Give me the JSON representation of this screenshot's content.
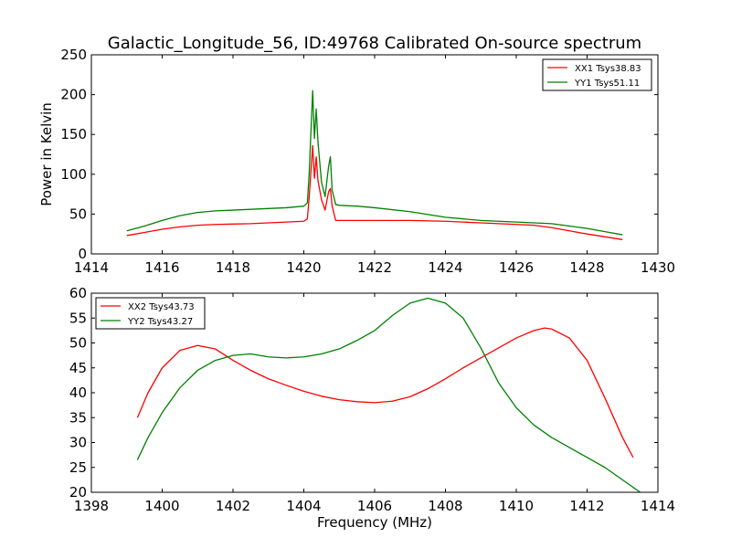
{
  "figure": {
    "title": "Galactic_Longitude_56, ID:49768 Calibrated On-source spectrum"
  },
  "chart_data": [
    {
      "type": "line",
      "title": "Galactic_Longitude_56, ID:49768 Calibrated On-source spectrum",
      "xlabel": "",
      "ylabel": "Power in Kelvin",
      "xlim": [
        1414,
        1430
      ],
      "ylim": [
        0,
        250
      ],
      "xticks": [
        1414,
        1416,
        1418,
        1420,
        1422,
        1424,
        1426,
        1428,
        1430
      ],
      "yticks": [
        0,
        50,
        100,
        150,
        200,
        250
      ],
      "grid": false,
      "legend": "top-right",
      "series": [
        {
          "name": "XX1 Tsys38.83",
          "color": "#ff0000",
          "x": [
            1415.0,
            1415.5,
            1416.0,
            1416.5,
            1417.0,
            1417.5,
            1418.0,
            1418.5,
            1419.0,
            1419.5,
            1420.0,
            1420.1,
            1420.15,
            1420.25,
            1420.3,
            1420.35,
            1420.4,
            1420.5,
            1420.6,
            1420.7,
            1420.75,
            1420.8,
            1420.9,
            1421.0,
            1421.5,
            1422.0,
            1423.0,
            1424.0,
            1425.0,
            1426.0,
            1426.5,
            1427.0,
            1428.0,
            1429.0
          ],
          "y": [
            23,
            27,
            31,
            34,
            36,
            37,
            37.5,
            38,
            39,
            40,
            41,
            44,
            70,
            136,
            95,
            122,
            92,
            68,
            55,
            78,
            82,
            60,
            42,
            42,
            42,
            42,
            42,
            41,
            39,
            37,
            36,
            33,
            25,
            18
          ]
        },
        {
          "name": "YY1 Tsys51.11",
          "color": "#008000",
          "x": [
            1415.0,
            1415.5,
            1416.0,
            1416.5,
            1417.0,
            1417.5,
            1418.0,
            1418.5,
            1419.0,
            1419.5,
            1420.0,
            1420.1,
            1420.15,
            1420.25,
            1420.3,
            1420.35,
            1420.4,
            1420.5,
            1420.6,
            1420.7,
            1420.75,
            1420.8,
            1420.9,
            1421.0,
            1421.5,
            1422.0,
            1423.0,
            1424.0,
            1425.0,
            1426.0,
            1426.5,
            1427.0,
            1428.0,
            1429.0
          ],
          "y": [
            29,
            35,
            42,
            48,
            52,
            54,
            55,
            56,
            57,
            58,
            60,
            64,
            100,
            205,
            145,
            182,
            140,
            90,
            72,
            110,
            122,
            80,
            62,
            61,
            60,
            58,
            53,
            46,
            42,
            40,
            39,
            38,
            32,
            24
          ]
        }
      ]
    },
    {
      "type": "line",
      "title": "",
      "xlabel": "Frequency (MHz)",
      "ylabel": "",
      "xlim": [
        1398,
        1414
      ],
      "ylim": [
        20,
        60
      ],
      "xticks": [
        1398,
        1400,
        1402,
        1404,
        1406,
        1408,
        1410,
        1412,
        1414
      ],
      "yticks": [
        20,
        25,
        30,
        35,
        40,
        45,
        50,
        55,
        60
      ],
      "grid": false,
      "legend": "top-left",
      "series": [
        {
          "name": "XX2 Tsys43.73",
          "color": "#ff0000",
          "x": [
            1399.3,
            1399.6,
            1400.0,
            1400.5,
            1401.0,
            1401.5,
            1402.0,
            1402.5,
            1403.0,
            1403.5,
            1404.0,
            1404.5,
            1405.0,
            1405.5,
            1406.0,
            1406.5,
            1407.0,
            1407.5,
            1408.0,
            1408.5,
            1409.0,
            1409.5,
            1410.0,
            1410.5,
            1410.8,
            1411.0,
            1411.5,
            1412.0,
            1412.5,
            1413.0,
            1413.3
          ],
          "y": [
            35,
            40,
            45,
            48.5,
            49.5,
            48.8,
            46.5,
            44.5,
            42.8,
            41.5,
            40.3,
            39.3,
            38.6,
            38.2,
            38,
            38.3,
            39.2,
            40.8,
            42.8,
            45,
            47,
            49,
            51,
            52.5,
            53,
            52.8,
            51,
            46.5,
            39,
            31,
            27
          ]
        },
        {
          "name": "YY2 Tsys43.27",
          "color": "#008000",
          "x": [
            1399.3,
            1399.6,
            1400.0,
            1400.5,
            1401.0,
            1401.5,
            1402.0,
            1402.5,
            1403.0,
            1403.5,
            1404.0,
            1404.5,
            1405.0,
            1405.5,
            1406.0,
            1406.5,
            1407.0,
            1407.5,
            1408.0,
            1408.5,
            1409.0,
            1409.5,
            1410.0,
            1410.5,
            1411.0,
            1411.5,
            1412.0,
            1412.5,
            1413.0,
            1413.5
          ],
          "y": [
            26.5,
            31,
            36,
            41,
            44.5,
            46.5,
            47.5,
            47.8,
            47.2,
            47,
            47.2,
            47.8,
            48.8,
            50.5,
            52.5,
            55.5,
            58,
            59,
            58,
            55,
            49,
            42,
            37,
            33.5,
            31,
            29,
            27,
            25,
            22.5,
            20
          ]
        }
      ]
    }
  ]
}
